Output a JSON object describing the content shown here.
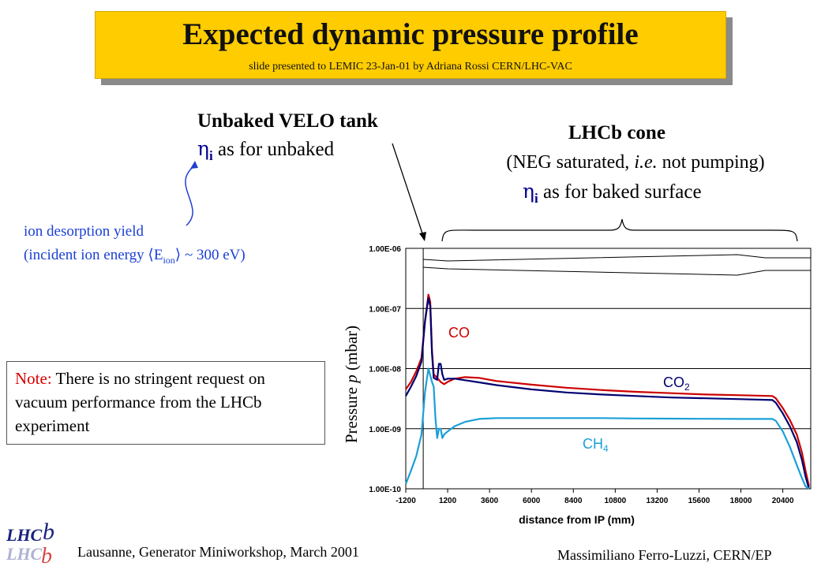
{
  "slide": {
    "title": "Expected dynamic pressure profile",
    "subtitle": "slide presented to LEMIC 23-Jan-01 by Adriana Rossi CERN/LHC-VAC",
    "velo": {
      "title": "Unbaked VELO tank",
      "eta_symbol": "η",
      "eta_sub": "i",
      "eta_text": " as for unbaked"
    },
    "cone": {
      "title": "LHCb cone",
      "note_pre": "(NEG saturated, ",
      "note_italic": "i.e.",
      "note_post": " not pumping)",
      "eta_symbol": "η",
      "eta_sub": "i",
      "eta_text": " as for baked surface"
    },
    "ion": {
      "line1": "ion desorption yield",
      "line2_pre": "(incident ion energy ",
      "langle": "⟨",
      "E": "E",
      "E_sub": "ion",
      "rangle": "⟩",
      "line2_post": " ~ 300 eV)"
    },
    "note": {
      "label": "Note:",
      "text": " There is no stringent request on vacuum performance from the LHCb experiment"
    },
    "footer_left": "Lausanne, Generator Miniworkshop, March 2001",
    "footer_right": "Massimiliano Ferro-Luzzi, CERN/EP",
    "logo_text": "LHCb"
  },
  "chart_data": {
    "type": "line",
    "title": "",
    "xlabel": "distance from IP (mm)",
    "ylabel_pre": "Pressure ",
    "ylabel_p": "p",
    "ylabel_post": " (mbar)",
    "yscale": "log",
    "xlim": [
      -1200,
      22000
    ],
    "ylim": [
      1e-10,
      1e-06
    ],
    "x_ticks": [
      -1200,
      1200,
      3600,
      6000,
      8400,
      10800,
      13200,
      15600,
      18000,
      20400
    ],
    "y_ticks": [
      1e-10,
      1e-09,
      1e-08,
      1e-07,
      1e-06
    ],
    "y_tick_labels": [
      "1.00E-10",
      "1.00E-09",
      "1.00E-08",
      "1.00E-07",
      "1.00E-06"
    ],
    "grid": "horizontal",
    "colors": {
      "CO": "#cc0000",
      "CO2": "#000070",
      "CH4": "#1aa0d8",
      "outline": "#000000"
    },
    "series": [
      {
        "name": "CO",
        "label": "CO",
        "sub": "",
        "x": [
          -1200,
          -900,
          -600,
          -300,
          -100,
          100,
          200,
          300,
          400,
          600,
          800,
          1000,
          1200,
          1600,
          2200,
          3000,
          4000,
          6000,
          8000,
          10000,
          12000,
          14000,
          16000,
          18000,
          19800,
          20000,
          20400,
          20800,
          21200,
          21500,
          21700,
          21900
        ],
        "y": [
          4.5e-09,
          6e-09,
          9e-09,
          1.5e-08,
          6e-08,
          1.7e-07,
          1.3e-07,
          2e-08,
          8e-09,
          7e-09,
          6e-09,
          5.5e-09,
          6e-09,
          6.8e-09,
          7.2e-09,
          7e-09,
          6.2e-09,
          5.4e-09,
          4.8e-09,
          4.4e-09,
          4.1e-09,
          3.9e-09,
          3.7e-09,
          3.6e-09,
          3.5e-09,
          3.2e-09,
          2.2e-09,
          1.4e-09,
          8e-10,
          4e-10,
          2e-10,
          1.1e-10
        ]
      },
      {
        "name": "CO2",
        "label": "CO",
        "sub": "2",
        "x": [
          -1200,
          -900,
          -600,
          -300,
          -100,
          100,
          200,
          300,
          400,
          600,
          700,
          800,
          900,
          1000,
          1200,
          1600,
          2200,
          3000,
          4000,
          6000,
          8000,
          10000,
          12000,
          14000,
          16000,
          18000,
          19800,
          20000,
          20400,
          20800,
          21200,
          21500,
          21700,
          21900
        ],
        "y": [
          3.5e-09,
          5e-09,
          7.5e-09,
          1.3e-08,
          6e-08,
          1.5e-07,
          1.1e-07,
          1.8e-08,
          7e-09,
          6.5e-09,
          1.2e-08,
          1.2e-08,
          8e-09,
          6.5e-09,
          6.8e-09,
          6.8e-09,
          6.4e-09,
          5.9e-09,
          5.3e-09,
          4.5e-09,
          4e-09,
          3.7e-09,
          3.5e-09,
          3.3e-09,
          3.2e-09,
          3.1e-09,
          3e-09,
          2.7e-09,
          1.8e-09,
          1.1e-09,
          6e-10,
          3e-10,
          1.6e-10,
          1e-10
        ]
      },
      {
        "name": "CH4",
        "label": "CH",
        "sub": "4",
        "x": [
          -1200,
          -900,
          -600,
          -300,
          -100,
          100,
          300,
          400,
          500,
          600,
          700,
          800,
          900,
          1000,
          1200,
          1600,
          2200,
          3000,
          4000,
          6000,
          8000,
          10000,
          12000,
          14000,
          16000,
          18000,
          19800,
          20000,
          20400,
          20800,
          21200,
          21500,
          21700,
          21900
        ],
        "y": [
          1.2e-10,
          2e-10,
          3.5e-10,
          8e-10,
          4e-09,
          1e-08,
          6e-09,
          5e-09,
          1.5e-09,
          7e-10,
          1e-09,
          1e-09,
          7e-10,
          8e-10,
          9e-10,
          1.1e-09,
          1.3e-09,
          1.45e-09,
          1.5e-09,
          1.5e-09,
          1.5e-09,
          1.5e-09,
          1.48e-09,
          1.47e-09,
          1.46e-09,
          1.45e-09,
          1.45e-09,
          1.35e-09,
          9e-10,
          5e-10,
          2.5e-10,
          1.5e-10,
          1.1e-10,
          1e-10
        ]
      }
    ]
  }
}
